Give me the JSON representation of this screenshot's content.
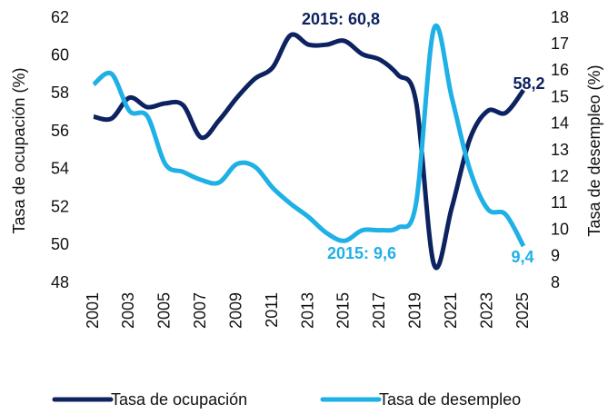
{
  "chart_data": {
    "type": "line",
    "y_label": "Tasa de ocupación (%)",
    "y2_label": "Tasa de desempleo (%)",
    "x": [
      2001,
      2002,
      2003,
      2004,
      2005,
      2006,
      2007,
      2008,
      2009,
      2010,
      2011,
      2012,
      2013,
      2014,
      2015,
      2016,
      2017,
      2018,
      2019,
      2020,
      2021,
      2022,
      2023,
      2024,
      2025
    ],
    "xlim": [
      2001,
      2025
    ],
    "xticks": [
      2001,
      2003,
      2005,
      2007,
      2009,
      2011,
      2013,
      2015,
      2017,
      2019,
      2021,
      2023,
      2025
    ],
    "ylim": [
      48,
      62
    ],
    "yticks": [
      48,
      50,
      52,
      54,
      56,
      58,
      60,
      62
    ],
    "y2lim": [
      8,
      18
    ],
    "y2ticks": [
      8,
      9,
      10,
      11,
      12,
      13,
      14,
      15,
      16,
      17,
      18
    ],
    "grid": false,
    "legend": "bottom",
    "series": [
      {
        "name": "Tasa de ocupación",
        "color": "#0d2260",
        "axis": "y",
        "values": [
          56.8,
          56.7,
          57.8,
          57.3,
          57.5,
          57.4,
          55.7,
          56.6,
          57.8,
          58.8,
          59.4,
          61.1,
          60.6,
          60.6,
          60.8,
          60.1,
          59.8,
          59.0,
          57.6,
          49.0,
          52.0,
          55.6,
          57.1,
          57.0,
          58.2
        ]
      },
      {
        "name": "Tasa de desempleo",
        "color": "#1fb0e6",
        "axis": "y2",
        "values": [
          15.5,
          15.9,
          14.5,
          14.3,
          12.5,
          12.2,
          11.9,
          11.8,
          12.5,
          12.4,
          11.6,
          11.0,
          10.5,
          9.9,
          9.6,
          10.0,
          10.0,
          10.1,
          11.0,
          17.6,
          15.0,
          12.3,
          10.8,
          10.6,
          9.4
        ]
      }
    ],
    "annotations": [
      "2015: 60,8",
      "2015: 9,6",
      "58,2",
      "9,4"
    ]
  }
}
